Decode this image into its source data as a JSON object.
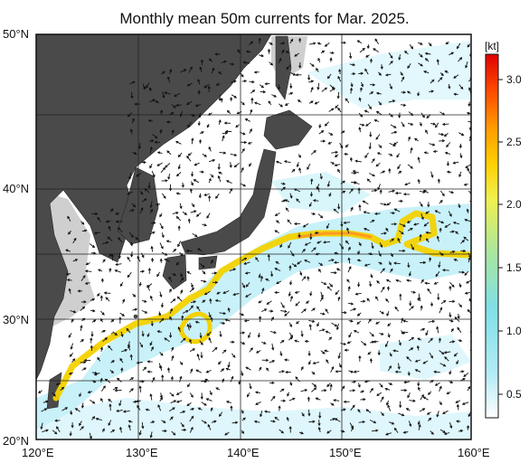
{
  "title": "Monthly mean 50m currents for Mar. 2025.",
  "map": {
    "lon_range": [
      120,
      160
    ],
    "lat_range": [
      20,
      50
    ],
    "x_ticks": [
      "120°E",
      "130°E",
      "140°E",
      "150°E",
      "160°E"
    ],
    "y_ticks": [
      "50°N",
      "40°N",
      "30°N",
      "20°N"
    ],
    "land_color": "#4a4a4a",
    "shelf_color": "#cfcfcf",
    "ocean_color": "#ffffff",
    "grid": true,
    "vectors": "black current arrows on a regular grid"
  },
  "colorbar": {
    "unit": "[kt]",
    "ticks": [
      "3.0",
      "2.5",
      "2.0",
      "1.5",
      "1.0",
      "0.5"
    ],
    "range": [
      0,
      3.3
    ],
    "stops": [
      "#ffffff",
      "#b4ecf6",
      "#7fe0e8",
      "#a8e6a0",
      "#f0f050",
      "#ffd000",
      "#ff9a00",
      "#ff4a00",
      "#e00000"
    ]
  },
  "currents": {
    "kuroshio_color": "#f3d200",
    "kuroshio_core_color": "#ff9a20",
    "weak_color": "#bfeff8"
  }
}
